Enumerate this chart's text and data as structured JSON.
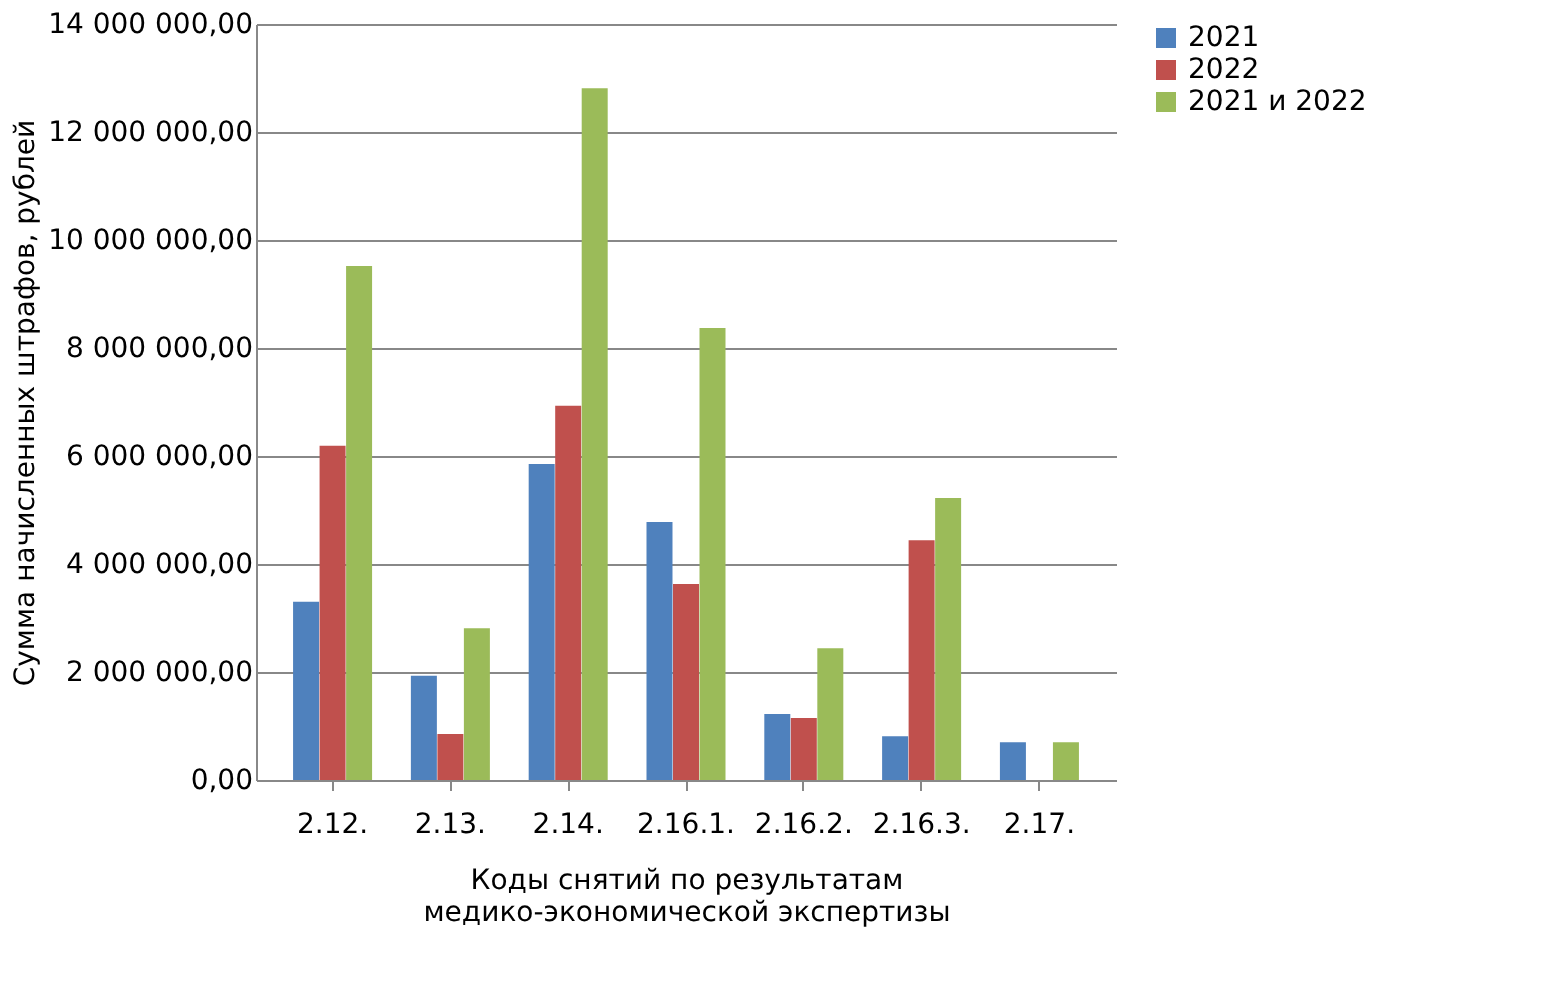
{
  "chart_data": {
    "type": "bar",
    "xlabel": "Коды снятий по результатам\nмедико-экономической экспертизы",
    "ylabel": "Сумма начисленных штрафов, рублей",
    "categories": [
      "2.12.",
      "2.13.",
      "2.14.",
      "2.16.1.",
      "2.16.2.",
      "2.16.3.",
      "2.17."
    ],
    "series": [
      {
        "name": "2021",
        "color": "#4f81bd",
        "values": [
          3300000,
          1930000,
          5850000,
          4780000,
          1220000,
          810000,
          700000
        ]
      },
      {
        "name": "2022",
        "color": "#c0504d",
        "values": [
          6190000,
          850000,
          6930000,
          3630000,
          1150000,
          4440000,
          0
        ]
      },
      {
        "name": "2021 и 2022",
        "color": "#9bbb59",
        "values": [
          9520000,
          2810000,
          12810000,
          8370000,
          2440000,
          5220000,
          700000
        ]
      }
    ],
    "ylim": [
      0,
      14000000
    ],
    "yticks": [
      {
        "value": 0,
        "label": "0,00"
      },
      {
        "value": 2000000,
        "label": "2 000 000,00"
      },
      {
        "value": 4000000,
        "label": "4 000 000,00"
      },
      {
        "value": 6000000,
        "label": "6 000 000,00"
      },
      {
        "value": 8000000,
        "label": "8 000 000,00"
      },
      {
        "value": 10000000,
        "label": "10 000 000,00"
      },
      {
        "value": 12000000,
        "label": "12 000 000,00"
      },
      {
        "value": 14000000,
        "label": "14 000 000,00"
      }
    ],
    "grid": "y",
    "legend": "right"
  }
}
